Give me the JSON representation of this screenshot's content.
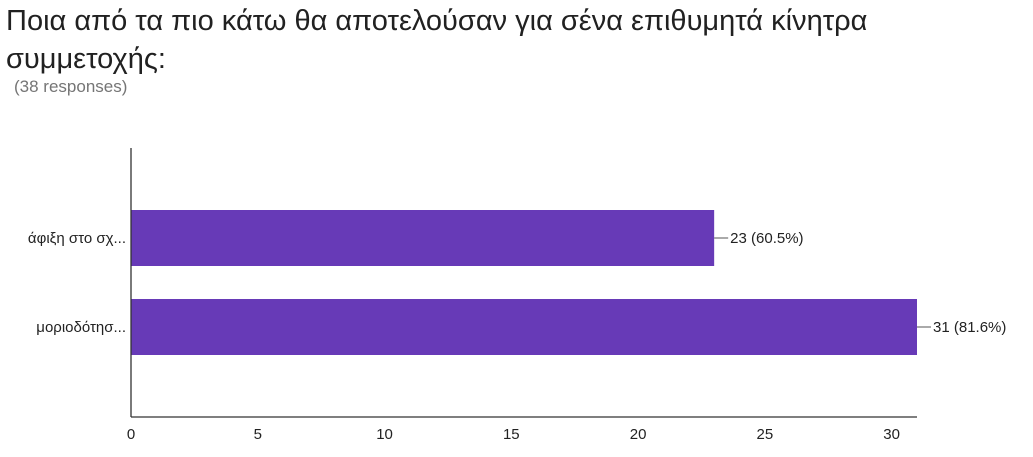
{
  "question": {
    "title": "Ποια από τα πιο κάτω θα αποτελούσαν για σένα επιθυμητά κίνητρα συμμετοχής:",
    "response_count": "(38 responses)"
  },
  "colors": {
    "bar": "#673ab7",
    "axis": "#333333",
    "text": "#222222"
  },
  "chart_data": {
    "type": "bar",
    "orientation": "horizontal",
    "categories": [
      "άφιξη στο σχ...",
      "μοριοδότησ..."
    ],
    "values": [
      23,
      31
    ],
    "data_labels": [
      "23 (60.5%)",
      "31 (81.6%)"
    ],
    "xlim": [
      0,
      31
    ],
    "xticks": [
      0,
      5,
      10,
      15,
      20,
      25,
      30
    ],
    "grid": false,
    "legend": "none"
  }
}
